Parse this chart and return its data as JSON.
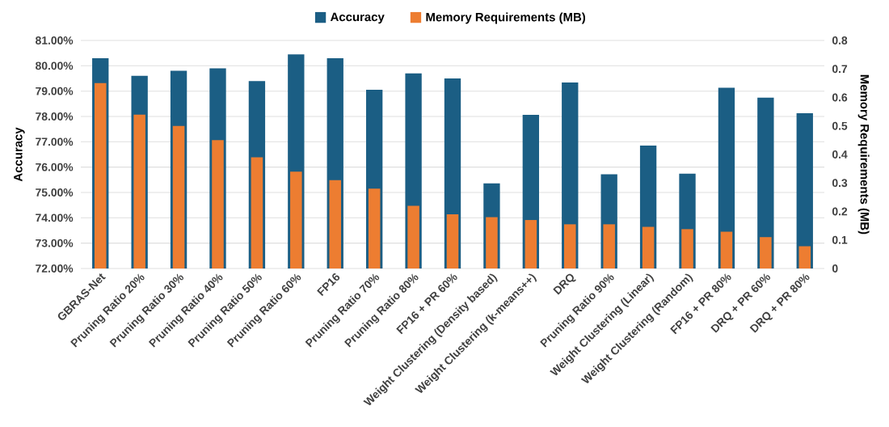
{
  "chart_data": {
    "type": "bar",
    "categories": [
      "GBRAS-Net",
      "Pruning Ratio 20%",
      "Pruning Ratio 30%",
      "Pruning Ratio 40%",
      "Pruning Ratio 50%",
      "Pruning Ratio 60%",
      "FP16",
      "Pruning Ratio 70%",
      "Pruning Ratio 80%",
      "FP16 + PR 60%",
      "Weight Clustering (Density based)",
      "Weight Clustering (k-means++)",
      "DRQ",
      "Pruning Ratio 90%",
      "Weight Clustering (Linear)",
      "Weight Clustering (Random)",
      "FP16 + PR 80%",
      "DRQ + PR 60%",
      "DRQ + PR 80%"
    ],
    "series": [
      {
        "name": "Accuracy",
        "color": "#1b5e84",
        "values": [
          80.3,
          79.6,
          79.8,
          79.9,
          79.4,
          80.45,
          80.3,
          79.05,
          79.7,
          79.5,
          75.36,
          78.06,
          79.34,
          75.72,
          76.85,
          75.74,
          79.13,
          78.74,
          78.13
        ]
      },
      {
        "name": "Memory Requirements (MB)",
        "color": "#ed7d31",
        "axis": "y2",
        "values": [
          0.65,
          0.54,
          0.5,
          0.45,
          0.39,
          0.34,
          0.31,
          0.28,
          0.22,
          0.19,
          0.18,
          0.17,
          0.155,
          0.155,
          0.146,
          0.138,
          0.129,
          0.11,
          0.078
        ]
      }
    ],
    "ylabel": "Accuracy",
    "y2label": "Memory Requirements (MB)",
    "ylim": [
      72,
      81
    ],
    "yticks": [
      {
        "value": 72,
        "label": "72.00%"
      },
      {
        "value": 73,
        "label": "73.00%"
      },
      {
        "value": 74,
        "label": "74.00%"
      },
      {
        "value": 75,
        "label": "75.00%"
      },
      {
        "value": 76,
        "label": "76.00%"
      },
      {
        "value": 77,
        "label": "77.00%"
      },
      {
        "value": 78,
        "label": "78.00%"
      },
      {
        "value": 79,
        "label": "79.00%"
      },
      {
        "value": 80,
        "label": "80.00%"
      },
      {
        "value": 81,
        "label": "81.00%"
      }
    ],
    "y2lim": [
      0,
      0.8
    ],
    "y2ticks": [
      0,
      0.1,
      0.2,
      0.3,
      0.4,
      0.5,
      0.6,
      0.7,
      0.8
    ],
    "grid": "y",
    "legend": "top"
  }
}
